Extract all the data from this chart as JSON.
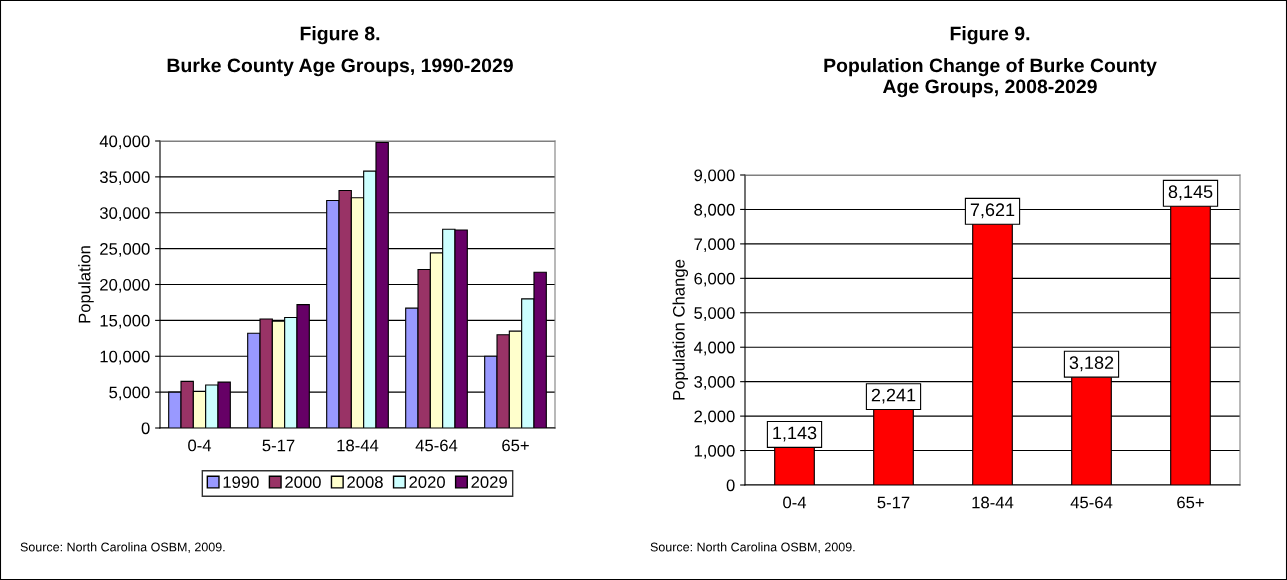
{
  "chart_data": [
    {
      "type": "bar",
      "title": "Figure 8.",
      "subtitle": "Burke County Age Groups, 1990-2029",
      "ylabel": "Population",
      "categories": [
        "0-4",
        "5-17",
        "18-44",
        "45-64",
        "65+"
      ],
      "series": [
        {
          "name": "1990",
          "color": "#9999ff",
          "values": [
            5000,
            13200,
            31700,
            16700,
            10000
          ]
        },
        {
          "name": "2000",
          "color": "#993366",
          "values": [
            6500,
            15200,
            33100,
            22100,
            13000
          ]
        },
        {
          "name": "2008",
          "color": "#ffffcc",
          "values": [
            5100,
            14900,
            32100,
            24400,
            13500
          ]
        },
        {
          "name": "2020",
          "color": "#ccffff",
          "values": [
            6000,
            15400,
            35800,
            27700,
            18000
          ]
        },
        {
          "name": "2029",
          "color": "#660066",
          "values": [
            6400,
            17200,
            39800,
            27600,
            21700
          ]
        }
      ],
      "ylim": [
        0,
        40000
      ],
      "yticks": [
        {
          "value": 0,
          "label": "0"
        },
        {
          "value": 5000,
          "label": "5,000"
        },
        {
          "value": 10000,
          "label": "10,000"
        },
        {
          "value": 15000,
          "label": "15,000"
        },
        {
          "value": 20000,
          "label": "20,000"
        },
        {
          "value": 25000,
          "label": "25,000"
        },
        {
          "value": 30000,
          "label": "30,000"
        },
        {
          "value": 35000,
          "label": "35,000"
        },
        {
          "value": 40000,
          "label": "40,000"
        }
      ],
      "grid": "y",
      "legend": "bottom",
      "annotations": [
        "Source: North Carolina OSBM, 2009."
      ]
    },
    {
      "type": "bar",
      "title": "Figure 9.",
      "subtitle": "Population Change of Burke County\nAge Groups, 2008-2029",
      "ylabel": "Population Change",
      "categories": [
        "0-4",
        "5-17",
        "18-44",
        "45-64",
        "65+"
      ],
      "values": [
        1143,
        2241,
        7621,
        3182,
        8145
      ],
      "color": "#ff0000",
      "value_labels": [
        "1,143",
        "2,241",
        "7,621",
        "3,182",
        "8,145"
      ],
      "ylim": [
        0,
        9000
      ],
      "yticks": [
        {
          "value": 0,
          "label": "0"
        },
        {
          "value": 1000,
          "label": "1,000"
        },
        {
          "value": 2000,
          "label": "2,000"
        },
        {
          "value": 3000,
          "label": "3,000"
        },
        {
          "value": 4000,
          "label": "4,000"
        },
        {
          "value": 5000,
          "label": "5,000"
        },
        {
          "value": 6000,
          "label": "6,000"
        },
        {
          "value": 7000,
          "label": "7,000"
        },
        {
          "value": 8000,
          "label": "8,000"
        },
        {
          "value": 9000,
          "label": "9,000"
        }
      ],
      "grid": "y",
      "annotations": [
        "Source: North Carolina OSBM, 2009."
      ]
    }
  ]
}
